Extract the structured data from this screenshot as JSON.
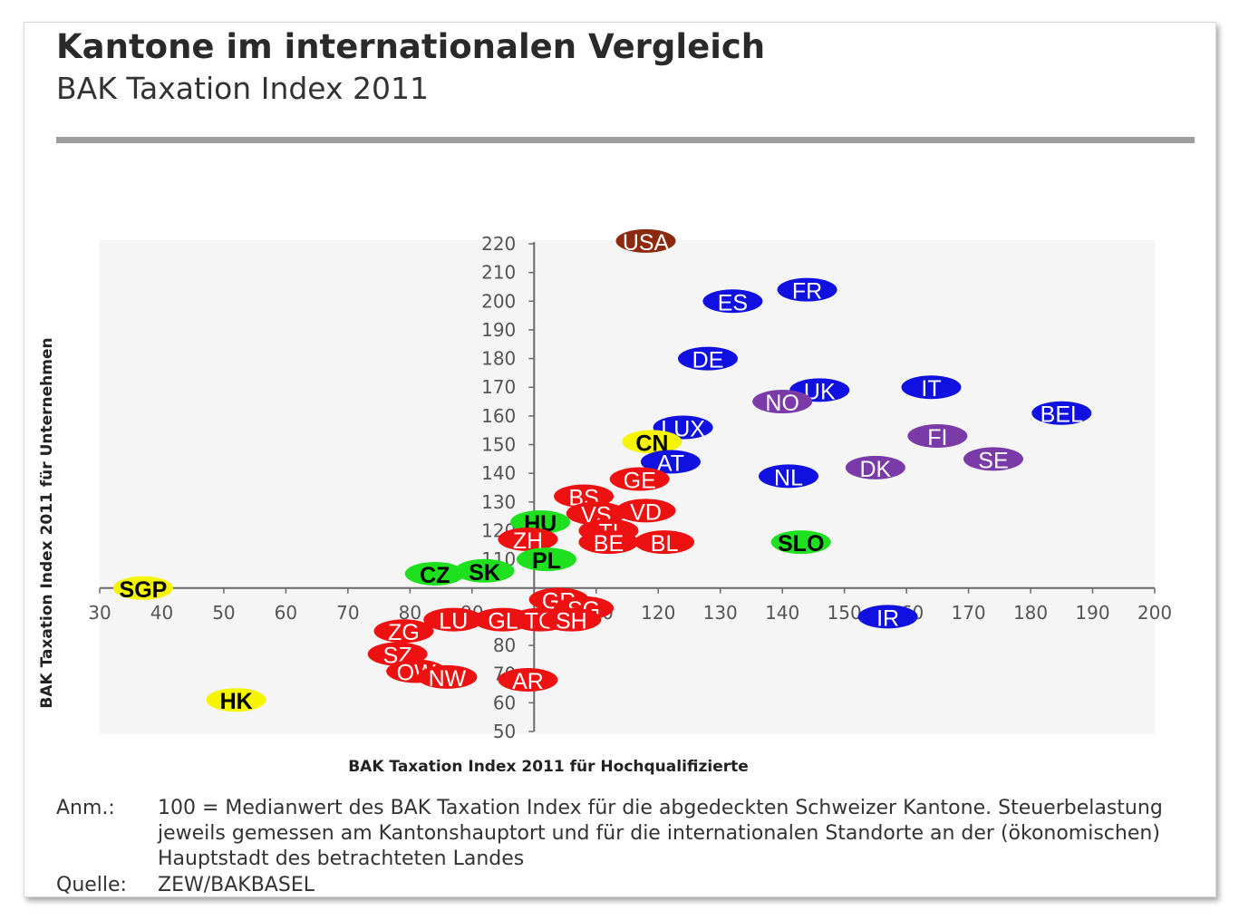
{
  "header": {
    "title": "Kantone im internationalen Vergleich",
    "subtitle": "BAK Taxation Index 2011"
  },
  "footer": {
    "note_label": "Anm.:",
    "note_text": "100 = Medianwert des BAK Taxation Index für die abgedeckten Schweizer Kantone. Steuerbelastung jeweils gemessen am Kantonshauptort und für die internationalen Standorte an der (ökonomischen) Hauptstadt des betrachteten Landes",
    "source_label": "Quelle:",
    "source_text": "ZEW/BAKBASEL"
  },
  "chart_data": {
    "type": "scatter",
    "title": "",
    "xlabel": "BAK Taxation Index 2011 für Hochqualifizierte",
    "ylabel": "BAK Taxation Index 2011 für Unternehmen",
    "xlim": [
      30,
      200
    ],
    "ylim": [
      50,
      220
    ],
    "axis_cross": [
      100,
      100
    ],
    "x_ticks": [
      30,
      40,
      50,
      60,
      70,
      80,
      90,
      100,
      110,
      120,
      130,
      140,
      150,
      160,
      170,
      180,
      190,
      200
    ],
    "y_ticks": [
      50,
      60,
      70,
      80,
      90,
      100,
      110,
      120,
      130,
      140,
      150,
      160,
      170,
      180,
      190,
      200,
      210,
      220
    ],
    "grid": false,
    "legend": "none",
    "group_colors": {
      "usa": "#8b2a0c",
      "eu_blue": "#1010e0",
      "nordic": "#7a3aa8",
      "asia": "#f5f500",
      "central_europe": "#1ee01e",
      "swiss": "#ee1111"
    },
    "points": [
      {
        "label": "USA",
        "x": 118,
        "y": 221,
        "group": "usa"
      },
      {
        "label": "FR",
        "x": 144,
        "y": 204,
        "group": "eu_blue"
      },
      {
        "label": "ES",
        "x": 132,
        "y": 200,
        "group": "eu_blue"
      },
      {
        "label": "DE",
        "x": 128,
        "y": 180,
        "group": "eu_blue"
      },
      {
        "label": "IT",
        "x": 164,
        "y": 170,
        "group": "eu_blue"
      },
      {
        "label": "UK",
        "x": 146,
        "y": 169,
        "group": "eu_blue"
      },
      {
        "label": "NO",
        "x": 140,
        "y": 165,
        "group": "nordic"
      },
      {
        "label": "BEL",
        "x": 185,
        "y": 161,
        "group": "eu_blue"
      },
      {
        "label": "LUX",
        "x": 124,
        "y": 156,
        "group": "eu_blue"
      },
      {
        "label": "FI",
        "x": 165,
        "y": 153,
        "group": "nordic"
      },
      {
        "label": "CN",
        "x": 119,
        "y": 151,
        "group": "asia"
      },
      {
        "label": "SE",
        "x": 174,
        "y": 145,
        "group": "nordic"
      },
      {
        "label": "AT",
        "x": 122,
        "y": 144,
        "group": "eu_blue"
      },
      {
        "label": "DK",
        "x": 155,
        "y": 142,
        "group": "nordic"
      },
      {
        "label": "NL",
        "x": 141,
        "y": 139,
        "group": "eu_blue"
      },
      {
        "label": "GE",
        "x": 117,
        "y": 138,
        "group": "swiss"
      },
      {
        "label": "BS",
        "x": 108,
        "y": 132,
        "group": "swiss"
      },
      {
        "label": "VD",
        "x": 118,
        "y": 127,
        "group": "swiss"
      },
      {
        "label": "VS",
        "x": 110,
        "y": 126,
        "group": "swiss"
      },
      {
        "label": "HU",
        "x": 101,
        "y": 123,
        "group": "central_europe"
      },
      {
        "label": "TI",
        "x": 112,
        "y": 120,
        "group": "swiss"
      },
      {
        "label": "ZH",
        "x": 99,
        "y": 117,
        "group": "swiss"
      },
      {
        "label": "BE",
        "x": 112,
        "y": 116,
        "group": "swiss"
      },
      {
        "label": "BL",
        "x": 121,
        "y": 116,
        "group": "swiss"
      },
      {
        "label": "SLO",
        "x": 143,
        "y": 116,
        "group": "central_europe"
      },
      {
        "label": "PL",
        "x": 102,
        "y": 110,
        "group": "central_europe"
      },
      {
        "label": "CZ",
        "x": 84,
        "y": 105,
        "group": "central_europe"
      },
      {
        "label": "SK",
        "x": 92,
        "y": 106,
        "group": "central_europe"
      },
      {
        "label": "SGP",
        "x": 37,
        "y": 100,
        "group": "asia"
      },
      {
        "label": "GR",
        "x": 104,
        "y": 96,
        "group": "swiss"
      },
      {
        "label": "SG",
        "x": 108,
        "y": 93,
        "group": "swiss"
      },
      {
        "label": "GL",
        "x": 95,
        "y": 89,
        "group": "swiss"
      },
      {
        "label": "TG",
        "x": 101,
        "y": 89,
        "group": "swiss"
      },
      {
        "label": "SH",
        "x": 106,
        "y": 89,
        "group": "swiss"
      },
      {
        "label": "LU",
        "x": 87,
        "y": 89,
        "group": "swiss"
      },
      {
        "label": "IR",
        "x": 157,
        "y": 90,
        "group": "eu_blue"
      },
      {
        "label": "ZG",
        "x": 79,
        "y": 85,
        "group": "swiss"
      },
      {
        "label": "SZ",
        "x": 78,
        "y": 77,
        "group": "swiss"
      },
      {
        "label": "OW",
        "x": 81,
        "y": 71,
        "group": "swiss"
      },
      {
        "label": "NW",
        "x": 86,
        "y": 69,
        "group": "swiss"
      },
      {
        "label": "AR",
        "x": 99,
        "y": 68,
        "group": "swiss"
      },
      {
        "label": "HK",
        "x": 52,
        "y": 61,
        "group": "asia"
      }
    ]
  }
}
